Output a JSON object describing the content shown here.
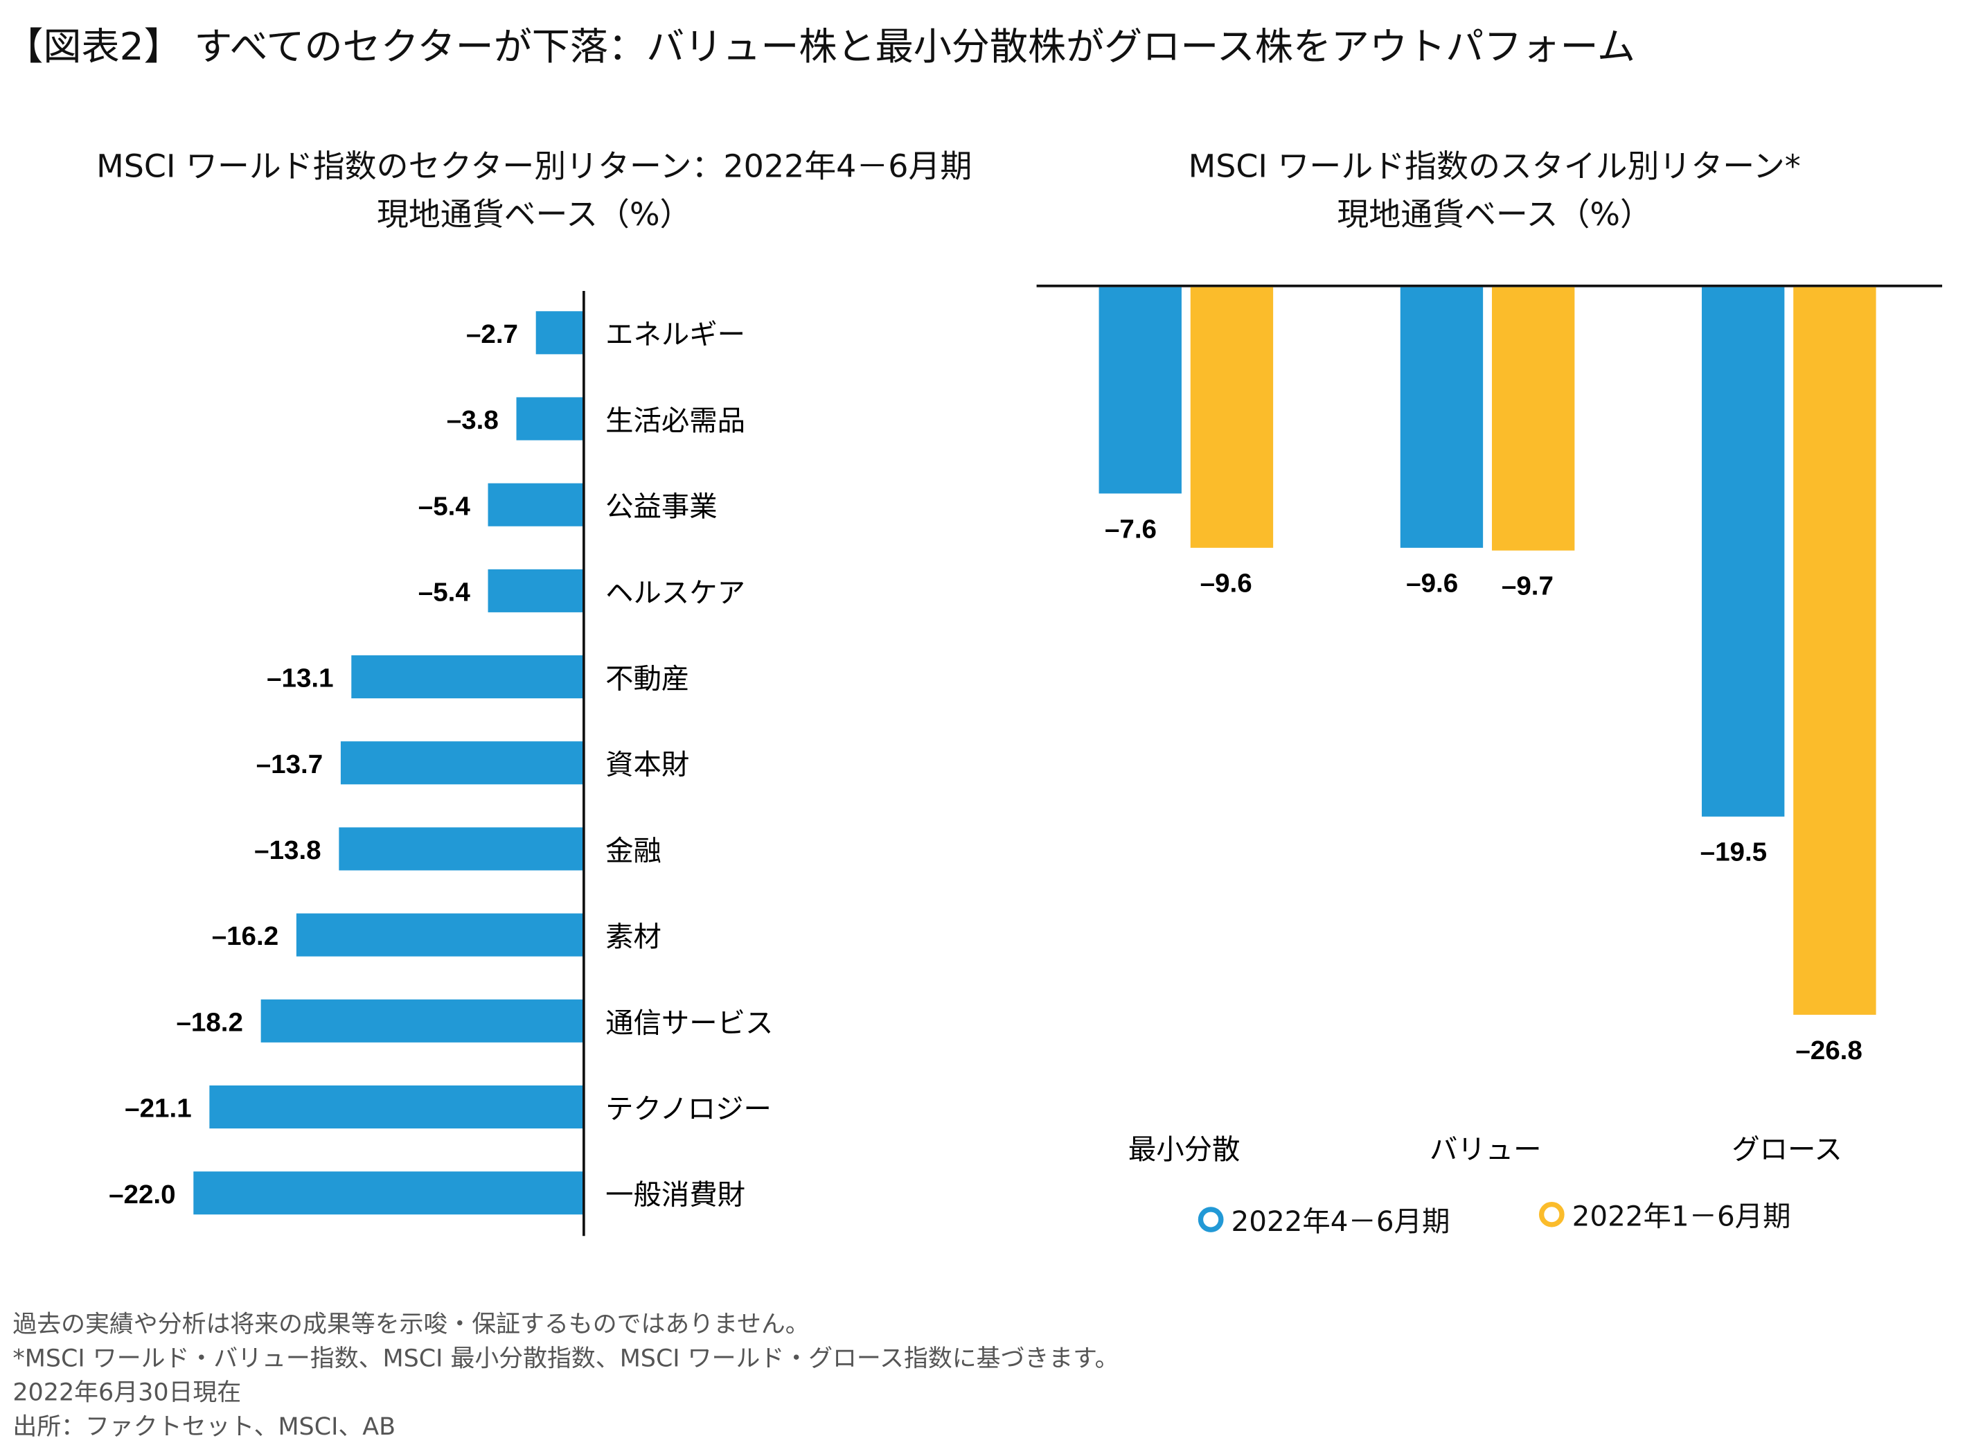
{
  "title": "【図表2】 すべてのセクターが下落：バリュー株と最小分散株がグロース株をアウトパフォーム",
  "colors": {
    "q2": "#2299D6",
    "h1": "#FBBC2B"
  },
  "chart_data": [
    {
      "type": "bar",
      "orientation": "horizontal",
      "title": "MSCI ワールド指数のセクター別リターン：2022年4－6月期",
      "subtitle": "現地通貨ベース（%）",
      "categories": [
        "エネルギー",
        "生活必需品",
        "公益事業",
        "ヘルスケア",
        "不動産",
        "資本財",
        "金融",
        "素材",
        "通信サービス",
        "テクノロジー",
        "一般消費財"
      ],
      "values": [
        -2.7,
        -3.8,
        -5.4,
        -5.4,
        -13.1,
        -13.7,
        -13.8,
        -16.2,
        -18.2,
        -21.1,
        -22.0
      ],
      "data_labels": [
        "–2.7",
        "–3.8",
        "–5.4",
        "–5.4",
        "–13.1",
        "–13.7",
        "–13.8",
        "–16.2",
        "–18.2",
        "–21.1",
        "–22.0"
      ],
      "grid": false
    },
    {
      "type": "bar",
      "title": "MSCI ワールド指数のスタイル別リターン*",
      "subtitle": "現地通貨ベース（%）",
      "categories": [
        "最小分散",
        "バリュー",
        "グロース"
      ],
      "series": [
        {
          "name": "2022年4－6月期",
          "values": [
            -7.6,
            -9.6,
            -19.5
          ],
          "data_labels": [
            "–7.6",
            "–9.6",
            "–19.5"
          ]
        },
        {
          "name": "2022年1－6月期",
          "values": [
            -9.6,
            -9.7,
            -26.8
          ],
          "data_labels": [
            "–9.6",
            "–9.7",
            "–26.8"
          ]
        }
      ],
      "legend": "bottom",
      "grid": false
    }
  ],
  "footnotes": [
    "過去の実績や分析は将来の成果等を示唆・保証するものではありません。",
    "*MSCI ワールド・バリュー指数、MSCI 最小分散指数、MSCI ワールド・グロース指数に基づきます。",
    "2022年6月30日現在",
    "出所：ファクトセット、MSCI、AB"
  ]
}
